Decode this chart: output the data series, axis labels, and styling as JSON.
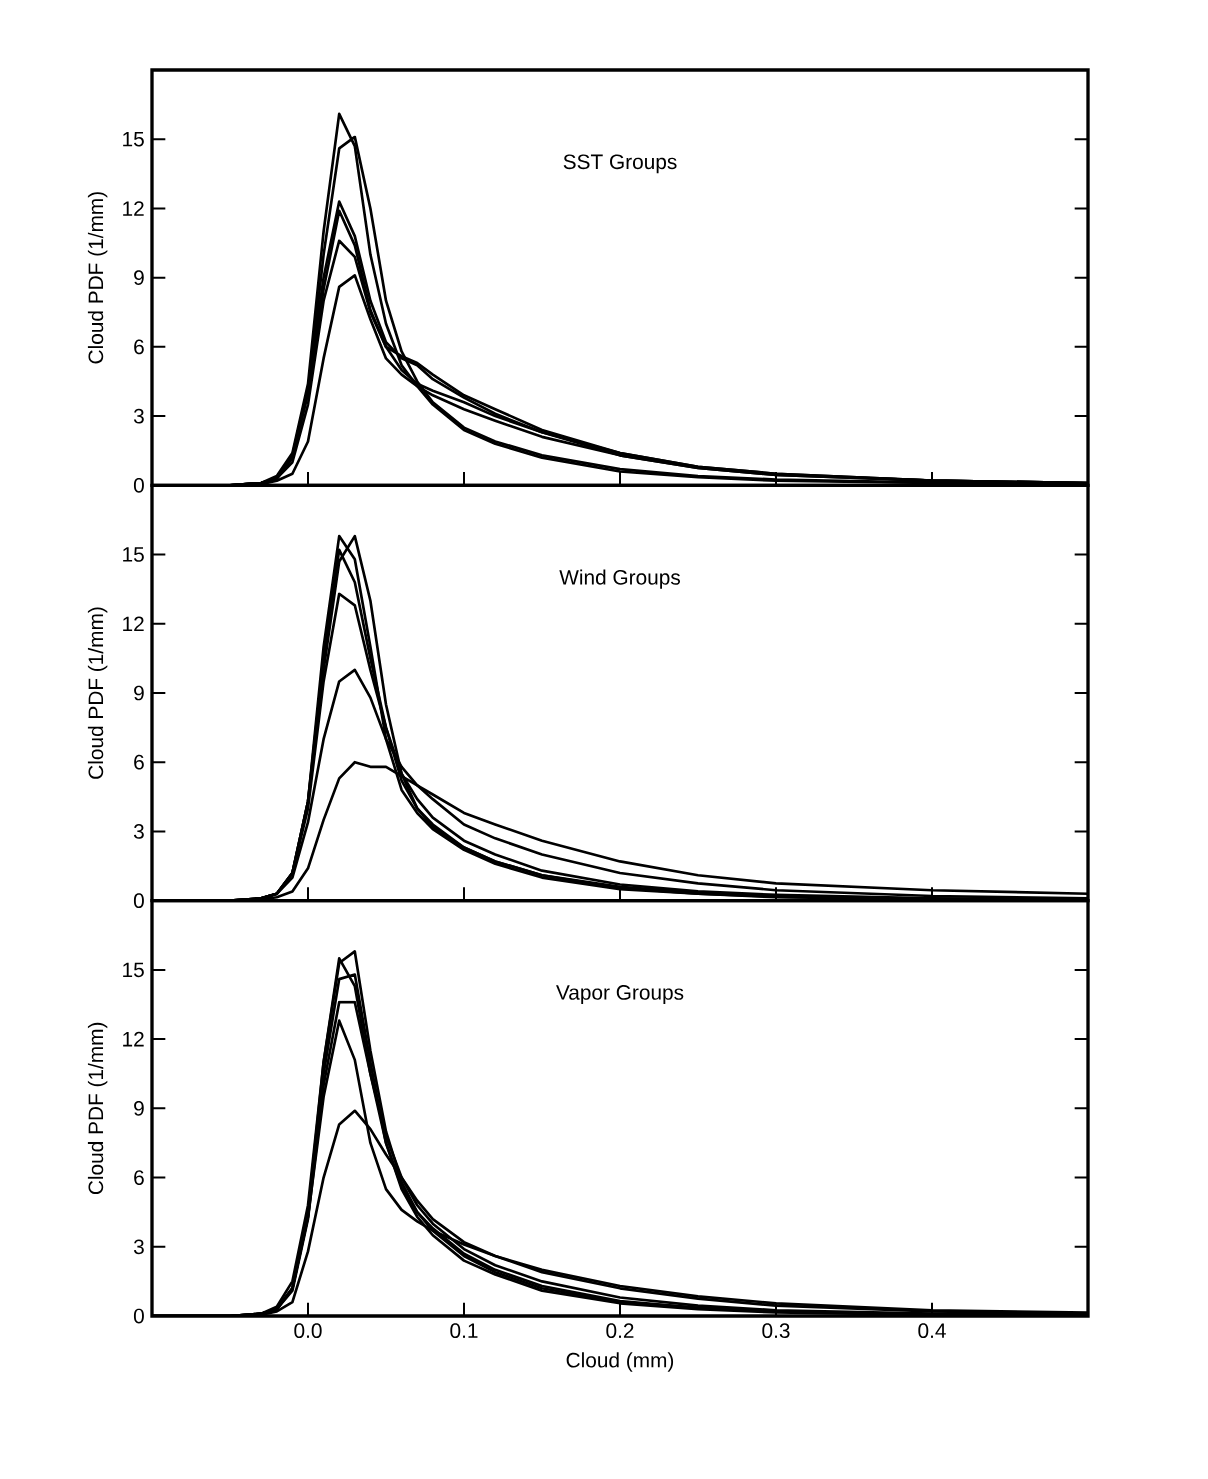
{
  "chart_data": [
    {
      "type": "line",
      "title": "SST Groups",
      "ylabel": "Cloud PDF (1/mm)",
      "tick_labels": "y",
      "line_style": "solid",
      "xlim": [
        -0.1,
        0.5
      ],
      "ylim": [
        0,
        18
      ],
      "xticks": [
        0,
        0.1,
        0.2,
        0.3,
        0.4
      ],
      "yticks": [
        0,
        3,
        6,
        9,
        12,
        15
      ],
      "x": [
        -0.1,
        -0.05,
        -0.03,
        -0.02,
        -0.01,
        0,
        0.01,
        0.02,
        0.03,
        0.04,
        0.05,
        0.06,
        0.07,
        0.08,
        0.1,
        0.12,
        0.15,
        0.2,
        0.25,
        0.3,
        0.4,
        0.5
      ],
      "series": [
        {
          "color": "#000000",
          "values": [
            0,
            0,
            0.1,
            0.4,
            1.4,
            4.4,
            11,
            16.1,
            14.7,
            10,
            7,
            5.2,
            4.3,
            3.5,
            2.4,
            1.8,
            1.2,
            0.6,
            0.35,
            0.2,
            0.1,
            0.05
          ]
        },
        {
          "color": "#000000",
          "values": [
            0,
            0,
            0.1,
            0.3,
            1.2,
            4.0,
            10,
            14.6,
            15.1,
            12,
            8,
            5.8,
            4.5,
            3.6,
            2.5,
            1.9,
            1.3,
            0.7,
            0.4,
            0.25,
            0.12,
            0.05
          ]
        },
        {
          "color": "#000000",
          "values": [
            0,
            0,
            0.1,
            0.3,
            1.3,
            4.2,
            9,
            12.3,
            10.8,
            8,
            6.2,
            5.5,
            5.2,
            4.6,
            3.8,
            3.1,
            2.3,
            1.4,
            0.8,
            0.5,
            0.2,
            0.1
          ]
        },
        {
          "color": "#000000",
          "values": [
            0,
            0,
            0.1,
            0.3,
            1.2,
            4.0,
            8.5,
            11.9,
            10.4,
            7.6,
            6,
            5.6,
            5.3,
            4.8,
            3.9,
            3.3,
            2.4,
            1.4,
            0.8,
            0.5,
            0.2,
            0.1
          ]
        },
        {
          "color": "#000000",
          "values": [
            0,
            0,
            0.1,
            0.3,
            1.0,
            3.5,
            8,
            10.6,
            9.9,
            7.5,
            6,
            5,
            4.4,
            4.1,
            3.6,
            3.0,
            2.3,
            1.3,
            0.75,
            0.45,
            0.2,
            0.1
          ]
        },
        {
          "color": "#000000",
          "values": [
            0,
            0,
            0.05,
            0.2,
            0.5,
            1.9,
            5.5,
            8.6,
            9.1,
            7.2,
            5.5,
            4.8,
            4.3,
            3.9,
            3.3,
            2.8,
            2.1,
            1.3,
            0.75,
            0.45,
            0.2,
            0.1
          ]
        }
      ]
    },
    {
      "type": "line",
      "title": "Wind Groups",
      "ylabel": "Cloud PDF (1/mm)",
      "tick_labels": "y",
      "line_style": "solid",
      "xlim": [
        -0.1,
        0.5
      ],
      "ylim": [
        0,
        18
      ],
      "xticks": [
        0,
        0.1,
        0.2,
        0.3,
        0.4
      ],
      "yticks": [
        0,
        3,
        6,
        9,
        12,
        15
      ],
      "x": [
        -0.1,
        -0.05,
        -0.03,
        -0.02,
        -0.01,
        0,
        0.01,
        0.02,
        0.03,
        0.04,
        0.05,
        0.06,
        0.07,
        0.08,
        0.1,
        0.12,
        0.15,
        0.2,
        0.25,
        0.3,
        0.4,
        0.5
      ],
      "series": [
        {
          "color": "#000000",
          "values": [
            0,
            0,
            0.1,
            0.3,
            1.2,
            4.3,
            11,
            15.8,
            14.8,
            11,
            7,
            4.8,
            3.8,
            3.1,
            2.2,
            1.6,
            1.0,
            0.5,
            0.3,
            0.15,
            0.05,
            0.02
          ]
        },
        {
          "color": "#000000",
          "values": [
            0,
            0,
            0.1,
            0.3,
            1.2,
            4.3,
            10,
            14.7,
            15.8,
            13,
            8.5,
            5.5,
            4,
            3.3,
            2.3,
            1.7,
            1.1,
            0.55,
            0.3,
            0.17,
            0.06,
            0.03
          ]
        },
        {
          "color": "#000000",
          "values": [
            0,
            0,
            0.1,
            0.3,
            1.2,
            4.3,
            10.5,
            15.2,
            13.8,
            10.5,
            7.5,
            5.2,
            4,
            3.2,
            2.3,
            1.7,
            1.1,
            0.6,
            0.35,
            0.2,
            0.08,
            0.04
          ]
        },
        {
          "color": "#000000",
          "values": [
            0,
            0,
            0.1,
            0.3,
            1.2,
            4.0,
            9.5,
            13.3,
            12.8,
            10,
            7.5,
            5.5,
            4.4,
            3.6,
            2.6,
            2.0,
            1.3,
            0.7,
            0.4,
            0.25,
            0.1,
            0.05
          ]
        },
        {
          "color": "#000000",
          "values": [
            0,
            0,
            0.1,
            0.3,
            1.0,
            3.4,
            7,
            9.5,
            10,
            8.8,
            7,
            5.8,
            5,
            4.4,
            3.3,
            2.7,
            2.0,
            1.2,
            0.75,
            0.45,
            0.2,
            0.1
          ]
        },
        {
          "color": "#000000",
          "values": [
            0,
            0,
            0.05,
            0.15,
            0.4,
            1.4,
            3.5,
            5.3,
            6.0,
            5.8,
            5.8,
            5.4,
            5.0,
            4.6,
            3.8,
            3.3,
            2.6,
            1.7,
            1.1,
            0.75,
            0.45,
            0.3
          ]
        }
      ]
    },
    {
      "type": "line",
      "title": "Vapor Groups",
      "ylabel": "Cloud PDF (1/mm)",
      "xlabel": "Cloud (mm)",
      "line_style": "solid",
      "xlim": [
        -0.1,
        0.5
      ],
      "ylim": [
        0,
        18
      ],
      "xticks": [
        {
          "value": 0,
          "label": "0.0"
        },
        0.1,
        0.2,
        0.3,
        0.4
      ],
      "yticks": [
        0,
        3,
        6,
        9,
        12,
        15
      ],
      "x": [
        -0.1,
        -0.05,
        -0.03,
        -0.02,
        -0.01,
        0,
        0.01,
        0.02,
        0.03,
        0.04,
        0.05,
        0.06,
        0.07,
        0.08,
        0.1,
        0.12,
        0.15,
        0.2,
        0.25,
        0.3,
        0.4,
        0.5
      ],
      "series": [
        {
          "color": "#000000",
          "values": [
            0,
            0,
            0.1,
            0.4,
            1.5,
            4.8,
            11,
            15.5,
            14.3,
            10.5,
            7.5,
            5.5,
            4.3,
            3.5,
            2.4,
            1.8,
            1.1,
            0.55,
            0.3,
            0.15,
            0.05,
            0.02
          ]
        },
        {
          "color": "#000000",
          "values": [
            0,
            0,
            0.1,
            0.3,
            1.2,
            4.4,
            11,
            15.3,
            15.8,
            11.5,
            8,
            5.8,
            4.5,
            3.7,
            2.6,
            1.9,
            1.2,
            0.6,
            0.35,
            0.2,
            0.07,
            0.03
          ]
        },
        {
          "color": "#000000",
          "values": [
            0,
            0,
            0.1,
            0.3,
            1.2,
            4.3,
            10.5,
            14.6,
            14.8,
            11,
            7.5,
            5.6,
            4.5,
            3.8,
            2.7,
            2.0,
            1.3,
            0.65,
            0.35,
            0.2,
            0.07,
            0.03
          ]
        },
        {
          "color": "#000000",
          "values": [
            0,
            0,
            0.1,
            0.3,
            1.1,
            4.2,
            10,
            13.6,
            13.6,
            10.5,
            7.8,
            6,
            4.8,
            4.0,
            2.9,
            2.2,
            1.5,
            0.8,
            0.45,
            0.25,
            0.1,
            0.05
          ]
        },
        {
          "color": "#000000",
          "values": [
            0,
            0,
            0.1,
            0.3,
            1.2,
            4.3,
            9.5,
            12.8,
            11.1,
            7.5,
            5.5,
            4.6,
            4.1,
            3.7,
            3.1,
            2.6,
            2.0,
            1.3,
            0.85,
            0.55,
            0.25,
            0.15
          ]
        },
        {
          "color": "#000000",
          "values": [
            0,
            0,
            0.05,
            0.2,
            0.6,
            2.8,
            6,
            8.3,
            8.9,
            8.1,
            7,
            6,
            5,
            4.2,
            3.2,
            2.6,
            1.9,
            1.2,
            0.75,
            0.45,
            0.2,
            0.1
          ]
        }
      ]
    }
  ]
}
